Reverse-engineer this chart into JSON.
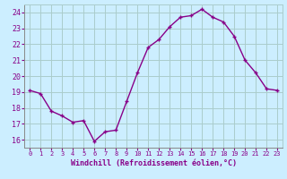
{
  "hours": [
    0,
    1,
    2,
    3,
    4,
    5,
    6,
    7,
    8,
    9,
    10,
    11,
    12,
    13,
    14,
    15,
    16,
    17,
    18,
    19,
    20,
    21,
    22,
    23
  ],
  "values": [
    19.1,
    18.9,
    17.8,
    17.5,
    17.1,
    17.2,
    15.9,
    16.5,
    16.6,
    18.4,
    20.2,
    21.8,
    22.3,
    23.1,
    23.7,
    23.8,
    24.2,
    23.7,
    23.4,
    22.5,
    21.0,
    20.2,
    19.2,
    19.1
  ],
  "xlabel": "Windchill (Refroidissement éolien,°C)",
  "xlim_min": -0.5,
  "xlim_max": 23.5,
  "ylim_min": 15.5,
  "ylim_max": 24.5,
  "yticks": [
    16,
    17,
    18,
    19,
    20,
    21,
    22,
    23,
    24
  ],
  "xticks": [
    0,
    1,
    2,
    3,
    4,
    5,
    6,
    7,
    8,
    9,
    10,
    11,
    12,
    13,
    14,
    15,
    16,
    17,
    18,
    19,
    20,
    21,
    22,
    23
  ],
  "line_color": "#880088",
  "bg_color": "#cceeff",
  "grid_color": "#aacccc",
  "tick_label_color": "#880088",
  "xlabel_color": "#880088"
}
